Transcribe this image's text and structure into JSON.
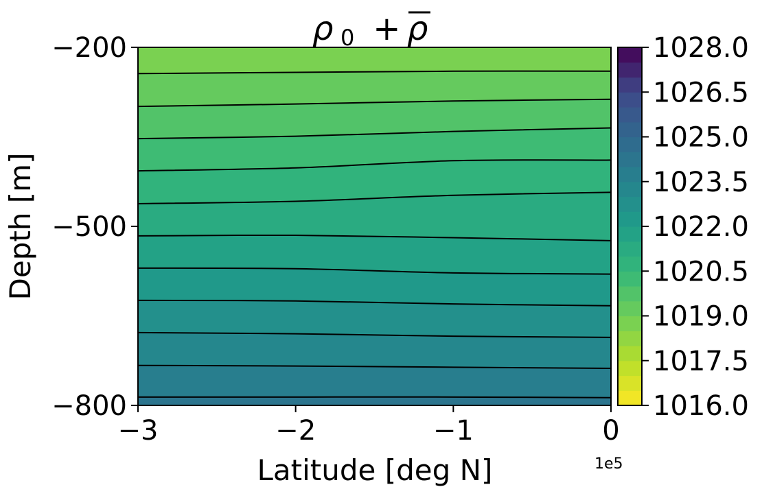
{
  "chart_data": {
    "type": "contour",
    "title_main": "ρ",
    "title_sub": "0",
    "title_rest": " + ",
    "title_bar": "ρ",
    "xlabel": "Latitude [deg N]",
    "ylabel": "Depth [m]",
    "x_offset_label": "1e5",
    "xlim": [
      -300000,
      0
    ],
    "ylim": [
      -800,
      -200
    ],
    "x_ticks": [
      -300000,
      -200000,
      -100000,
      0
    ],
    "x_tick_labels": [
      "−3",
      "−2",
      "−1",
      "0"
    ],
    "y_ticks": [
      -200,
      -500,
      -800
    ],
    "y_tick_labels": [
      "−200",
      "−500",
      "−800"
    ],
    "colormap": "viridis_r",
    "colorbar": {
      "range": [
        1016.0,
        1028.0
      ],
      "level_step": 0.5,
      "ticks": [
        1016.0,
        1017.5,
        1019.0,
        1020.5,
        1022.0,
        1023.5,
        1025.0,
        1026.5,
        1028.0
      ],
      "tick_labels": [
        "1016.0",
        "1017.5",
        "1019.0",
        "1020.5",
        "1022.0",
        "1023.5",
        "1025.0",
        "1026.5",
        "1028.0"
      ]
    },
    "contour_lines": [
      {
        "level": 1019.0,
        "x": [
          -300000,
          -200000,
          -100000,
          0
        ],
        "depth": [
          -244,
          -242,
          -240,
          -240
        ]
      },
      {
        "level": 1019.5,
        "x": [
          -300000,
          -200000,
          -100000,
          0
        ],
        "depth": [
          -299,
          -295,
          -290,
          -287
        ]
      },
      {
        "level": 1020.0,
        "x": [
          -300000,
          -200000,
          -100000,
          0
        ],
        "depth": [
          -353,
          -349,
          -341,
          -335
        ]
      },
      {
        "level": 1020.5,
        "x": [
          -300000,
          -200000,
          -100000,
          0
        ],
        "depth": [
          -407,
          -402,
          -390,
          -389
        ]
      },
      {
        "level": 1021.0,
        "x": [
          -300000,
          -200000,
          -100000,
          0
        ],
        "depth": [
          -462,
          -458,
          -448,
          -443
        ]
      },
      {
        "level": 1021.5,
        "x": [
          -300000,
          -200000,
          -100000,
          0
        ],
        "depth": [
          -516,
          -515,
          -519,
          -524
        ]
      },
      {
        "level": 1022.0,
        "x": [
          -300000,
          -200000,
          -100000,
          0
        ],
        "depth": [
          -570,
          -571,
          -578,
          -580
        ]
      },
      {
        "level": 1022.5,
        "x": [
          -300000,
          -200000,
          -100000,
          0
        ],
        "depth": [
          -624,
          -625,
          -630,
          -633
        ]
      },
      {
        "level": 1023.0,
        "x": [
          -300000,
          -200000,
          -100000,
          0
        ],
        "depth": [
          -678,
          -680,
          -684,
          -686
        ]
      },
      {
        "level": 1023.5,
        "x": [
          -300000,
          -200000,
          -100000,
          0
        ],
        "depth": [
          -733,
          -734,
          -736,
          -738
        ]
      },
      {
        "level": 1024.0,
        "x": [
          -300000,
          -200000,
          -100000,
          0
        ],
        "depth": [
          -786,
          -786,
          -786,
          -787
        ]
      }
    ]
  }
}
